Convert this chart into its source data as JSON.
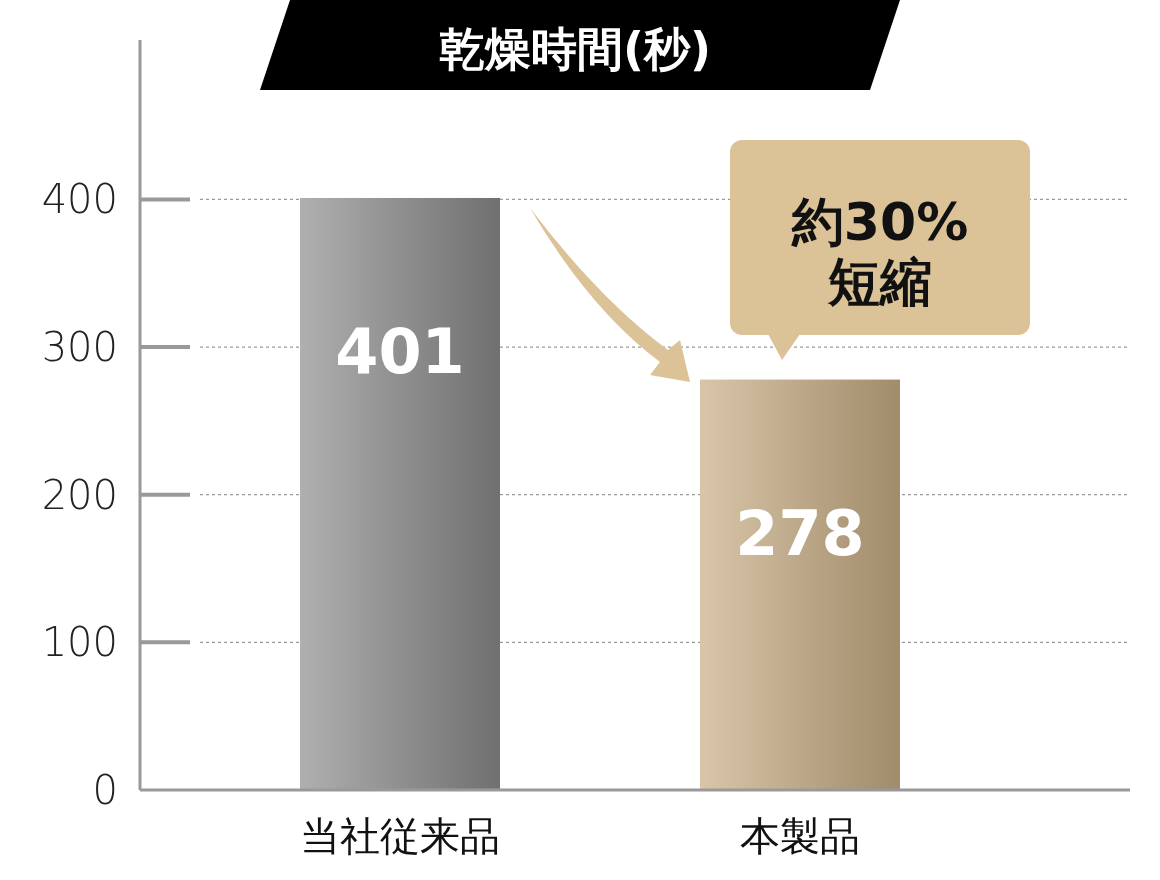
{
  "chart_data": {
    "type": "bar",
    "title": "乾燥時間(秒)",
    "categories": [
      "当社従来品",
      "本製品"
    ],
    "values": [
      401,
      278
    ],
    "colors": [
      "#8c8c8c",
      "#c8ae84"
    ],
    "data_labels": true,
    "ylim": [
      0,
      508
    ],
    "yticks": [
      0,
      100,
      200,
      300,
      400
    ],
    "grid": "y",
    "annotations": [
      "約30%短縮"
    ]
  }
}
